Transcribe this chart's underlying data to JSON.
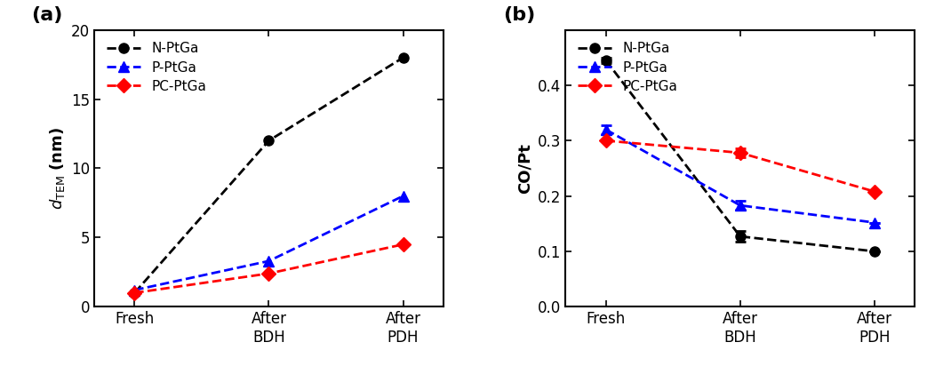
{
  "x_labels": [
    "Fresh",
    "After\nBDH",
    "After\nPDH"
  ],
  "x_positions": [
    0,
    1,
    2
  ],
  "panel_a": {
    "title": "(a)",
    "ylabel_normal": " (nm)",
    "ylim": [
      0,
      20
    ],
    "yticks": [
      0,
      5,
      10,
      15,
      20
    ],
    "series": [
      {
        "label": "N-PtGa",
        "color": "black",
        "marker": "o",
        "markersize": 8,
        "values": [
          1.0,
          12.0,
          18.0
        ],
        "yerr": [
          null,
          null,
          null
        ]
      },
      {
        "label": "P-PtGa",
        "color": "blue",
        "marker": "^",
        "markersize": 8,
        "values": [
          1.2,
          3.3,
          8.0
        ],
        "yerr": [
          null,
          null,
          null
        ]
      },
      {
        "label": "PC-PtGa",
        "color": "red",
        "marker": "D",
        "markersize": 8,
        "values": [
          1.0,
          2.4,
          4.5
        ],
        "yerr": [
          null,
          null,
          null
        ]
      }
    ]
  },
  "panel_b": {
    "title": "(b)",
    "ylabel": "CO/Pt",
    "ylim": [
      0.0,
      0.5
    ],
    "yticks": [
      0.0,
      0.1,
      0.2,
      0.3,
      0.4
    ],
    "series": [
      {
        "label": "N-PtGa",
        "color": "black",
        "marker": "o",
        "markersize": 8,
        "values": [
          0.445,
          0.127,
          0.1
        ],
        "yerr": [
          0.005,
          0.01,
          null
        ]
      },
      {
        "label": "P-PtGa",
        "color": "blue",
        "marker": "^",
        "markersize": 8,
        "values": [
          0.32,
          0.183,
          0.152
        ],
        "yerr": [
          0.008,
          0.008,
          null
        ]
      },
      {
        "label": "PC-PtGa",
        "color": "red",
        "marker": "D",
        "markersize": 8,
        "values": [
          0.3,
          0.278,
          0.208
        ],
        "yerr": [
          null,
          0.008,
          null
        ]
      }
    ]
  },
  "legend_fontsize": 11,
  "tick_fontsize": 12,
  "label_fontsize": 13,
  "panel_label_fontsize": 16,
  "linewidth": 2.0,
  "capsize": 4
}
